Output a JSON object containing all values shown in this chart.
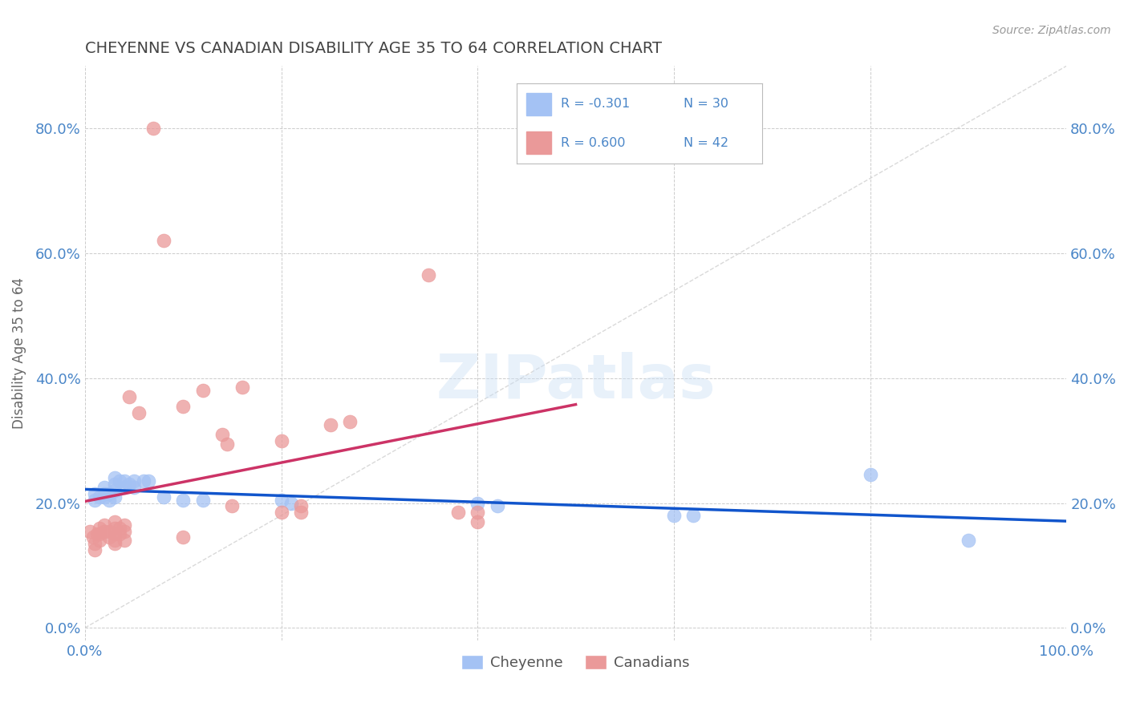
{
  "title": "CHEYENNE VS CANADIAN DISABILITY AGE 35 TO 64 CORRELATION CHART",
  "source": "Source: ZipAtlas.com",
  "ylabel": "Disability Age 35 to 64",
  "xlim": [
    0.0,
    1.0
  ],
  "ylim": [
    -0.02,
    0.9
  ],
  "yticks": [
    0.0,
    0.2,
    0.4,
    0.6,
    0.8
  ],
  "ytick_labels": [
    "0.0%",
    "20.0%",
    "40.0%",
    "60.0%",
    "80.0%"
  ],
  "xticks": [
    0.0,
    0.2,
    0.4,
    0.6,
    0.8,
    1.0
  ],
  "xtick_labels": [
    "0.0%",
    "",
    "",
    "",
    "",
    "100.0%"
  ],
  "cheyenne_color": "#a4c2f4",
  "canadian_color": "#ea9999",
  "cheyenne_line_color": "#1155cc",
  "canadian_line_color": "#cc3366",
  "trendline_color": "#cccccc",
  "background_color": "#ffffff",
  "grid_color": "#cccccc",
  "watermark": "ZIPatlas",
  "cheyenne_points": [
    [
      0.01,
      0.215
    ],
    [
      0.01,
      0.205
    ],
    [
      0.015,
      0.21
    ],
    [
      0.02,
      0.225
    ],
    [
      0.02,
      0.21
    ],
    [
      0.02,
      0.215
    ],
    [
      0.025,
      0.215
    ],
    [
      0.025,
      0.205
    ],
    [
      0.03,
      0.24
    ],
    [
      0.03,
      0.23
    ],
    [
      0.03,
      0.22
    ],
    [
      0.03,
      0.21
    ],
    [
      0.035,
      0.235
    ],
    [
      0.04,
      0.235
    ],
    [
      0.04,
      0.225
    ],
    [
      0.045,
      0.23
    ],
    [
      0.05,
      0.235
    ],
    [
      0.05,
      0.225
    ],
    [
      0.06,
      0.235
    ],
    [
      0.065,
      0.235
    ],
    [
      0.08,
      0.21
    ],
    [
      0.1,
      0.205
    ],
    [
      0.12,
      0.205
    ],
    [
      0.2,
      0.205
    ],
    [
      0.21,
      0.2
    ],
    [
      0.4,
      0.2
    ],
    [
      0.42,
      0.195
    ],
    [
      0.6,
      0.18
    ],
    [
      0.62,
      0.18
    ],
    [
      0.8,
      0.245
    ],
    [
      0.9,
      0.14
    ]
  ],
  "canadian_points": [
    [
      0.005,
      0.155
    ],
    [
      0.008,
      0.145
    ],
    [
      0.01,
      0.135
    ],
    [
      0.01,
      0.125
    ],
    [
      0.012,
      0.15
    ],
    [
      0.015,
      0.16
    ],
    [
      0.015,
      0.15
    ],
    [
      0.015,
      0.14
    ],
    [
      0.02,
      0.165
    ],
    [
      0.02,
      0.155
    ],
    [
      0.025,
      0.155
    ],
    [
      0.025,
      0.145
    ],
    [
      0.03,
      0.17
    ],
    [
      0.03,
      0.16
    ],
    [
      0.03,
      0.15
    ],
    [
      0.03,
      0.14
    ],
    [
      0.03,
      0.135
    ],
    [
      0.035,
      0.16
    ],
    [
      0.035,
      0.15
    ],
    [
      0.04,
      0.165
    ],
    [
      0.04,
      0.155
    ],
    [
      0.04,
      0.14
    ],
    [
      0.045,
      0.37
    ],
    [
      0.055,
      0.345
    ],
    [
      0.07,
      0.8
    ],
    [
      0.08,
      0.62
    ],
    [
      0.1,
      0.355
    ],
    [
      0.1,
      0.145
    ],
    [
      0.12,
      0.38
    ],
    [
      0.14,
      0.31
    ],
    [
      0.145,
      0.295
    ],
    [
      0.15,
      0.195
    ],
    [
      0.16,
      0.385
    ],
    [
      0.2,
      0.3
    ],
    [
      0.2,
      0.185
    ],
    [
      0.22,
      0.195
    ],
    [
      0.22,
      0.185
    ],
    [
      0.25,
      0.325
    ],
    [
      0.27,
      0.33
    ],
    [
      0.35,
      0.565
    ],
    [
      0.38,
      0.185
    ],
    [
      0.4,
      0.17
    ],
    [
      0.4,
      0.185
    ]
  ]
}
